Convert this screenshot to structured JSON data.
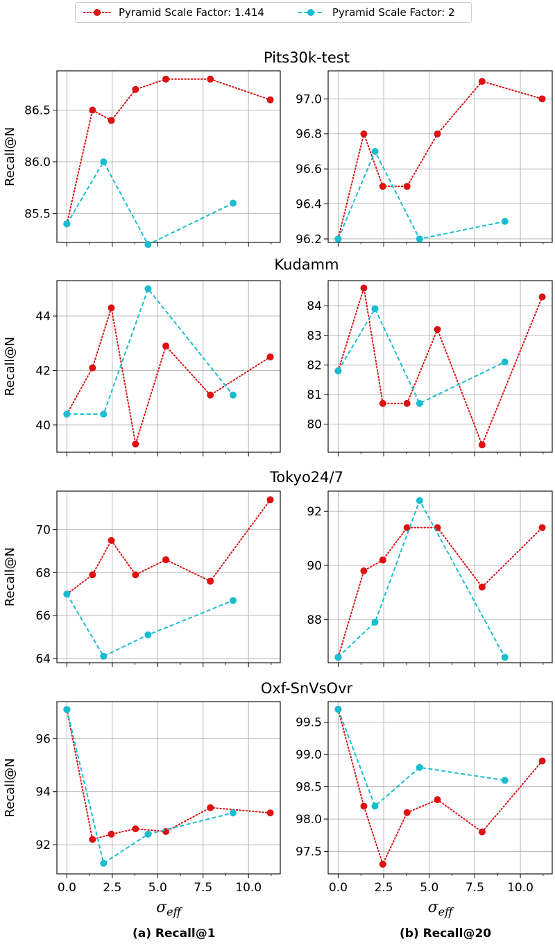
{
  "legend": {
    "series": [
      {
        "name": "Pyramid Scale Factor: 1.414",
        "color": "#dd1111",
        "style": "dotted"
      },
      {
        "name": "Pyramid Scale Factor: 2",
        "color": "#17becf",
        "style": "dashed"
      }
    ]
  },
  "captions": {
    "left": "(a) Recall@1",
    "right": "(b) Recall@20"
  },
  "x_axis_label": "σ_eff",
  "chart_data": [
    {
      "dataset": "Pits30k-test",
      "title": "Pits30k-test",
      "type": "line",
      "panels": [
        {
          "name": "Recall@1",
          "ylabel": "Recall@N",
          "ylim": [
            85.22,
            86.88
          ],
          "yticks": [
            85.5,
            86.0,
            86.5
          ],
          "ytick_labels": [
            "85.5",
            "86.0",
            "86.5"
          ],
          "series": [
            {
              "name": "Pyramid Scale Factor: 1.414",
              "x": [
                0,
                1.41,
                2.45,
                3.78,
                5.45,
                7.9,
                11.2
              ],
              "values": [
                85.4,
                86.5,
                86.4,
                86.7,
                86.8,
                86.8,
                86.6
              ]
            },
            {
              "name": "Pyramid Scale Factor: 2",
              "x": [
                0,
                2.02,
                4.47,
                9.15
              ],
              "values": [
                85.4,
                86.0,
                85.2,
                85.6
              ]
            }
          ]
        },
        {
          "name": "Recall@20",
          "ylabel": "",
          "ylim": [
            96.18,
            97.16
          ],
          "yticks": [
            96.2,
            96.4,
            96.6,
            96.8,
            97.0
          ],
          "ytick_labels": [
            "96.2",
            "96.4",
            "96.6",
            "96.8",
            "97.0"
          ],
          "series": [
            {
              "name": "Pyramid Scale Factor: 1.414",
              "x": [
                0,
                1.41,
                2.45,
                3.78,
                5.45,
                7.9,
                11.2
              ],
              "values": [
                96.2,
                96.8,
                96.5,
                96.5,
                96.8,
                97.1,
                97.0
              ]
            },
            {
              "name": "Pyramid Scale Factor: 2",
              "x": [
                0,
                2.02,
                4.47,
                9.15
              ],
              "values": [
                96.2,
                96.7,
                96.2,
                96.3
              ]
            }
          ]
        }
      ]
    },
    {
      "dataset": "Kudamm",
      "title": "Kudamm",
      "type": "line",
      "panels": [
        {
          "name": "Recall@1",
          "ylabel": "Recall@N",
          "ylim": [
            39.0,
            45.3
          ],
          "yticks": [
            40,
            42,
            44
          ],
          "ytick_labels": [
            "40",
            "42",
            "44"
          ],
          "series": [
            {
              "name": "Pyramid Scale Factor: 1.414",
              "x": [
                0,
                1.41,
                2.45,
                3.78,
                5.45,
                7.9,
                11.2
              ],
              "values": [
                40.4,
                42.1,
                44.3,
                39.3,
                42.9,
                41.1,
                42.5
              ]
            },
            {
              "name": "Pyramid Scale Factor: 2",
              "x": [
                0,
                2.02,
                4.47,
                9.15
              ],
              "values": [
                40.4,
                40.4,
                45.0,
                41.1
              ]
            }
          ]
        },
        {
          "name": "Recall@20",
          "ylabel": "",
          "ylim": [
            79.05,
            84.85
          ],
          "yticks": [
            80,
            81,
            82,
            83,
            84
          ],
          "ytick_labels": [
            "80",
            "81",
            "82",
            "83",
            "84"
          ],
          "series": [
            {
              "name": "Pyramid Scale Factor: 1.414",
              "x": [
                0,
                1.41,
                2.45,
                3.78,
                5.45,
                7.9,
                11.2
              ],
              "values": [
                81.8,
                84.6,
                80.7,
                80.7,
                83.2,
                79.3,
                84.3
              ]
            },
            {
              "name": "Pyramid Scale Factor: 2",
              "x": [
                0,
                2.02,
                4.47,
                9.15
              ],
              "values": [
                81.8,
                83.9,
                80.7,
                82.1
              ]
            }
          ]
        }
      ]
    },
    {
      "dataset": "Tokyo24/7",
      "title": "Tokyo24/7",
      "type": "line",
      "panels": [
        {
          "name": "Recall@1",
          "ylabel": "Recall@N",
          "ylim": [
            63.8,
            71.8
          ],
          "yticks": [
            64,
            66,
            68,
            70
          ],
          "ytick_labels": [
            "64",
            "66",
            "68",
            "70"
          ],
          "series": [
            {
              "name": "Pyramid Scale Factor: 1.414",
              "x": [
                0,
                1.41,
                2.45,
                3.78,
                5.45,
                7.9,
                11.2
              ],
              "values": [
                67.0,
                67.9,
                69.5,
                67.9,
                68.6,
                67.6,
                71.4
              ]
            },
            {
              "name": "Pyramid Scale Factor: 2",
              "x": [
                0,
                2.02,
                4.47,
                9.15
              ],
              "values": [
                67.0,
                64.1,
                65.1,
                66.7
              ]
            }
          ]
        },
        {
          "name": "Recall@20",
          "ylabel": "",
          "ylim": [
            86.4,
            92.75
          ],
          "yticks": [
            88,
            90,
            92
          ],
          "ytick_labels": [
            "88",
            "90",
            "92"
          ],
          "series": [
            {
              "name": "Pyramid Scale Factor: 1.414",
              "x": [
                0,
                1.41,
                2.45,
                3.78,
                5.45,
                7.9,
                11.2
              ],
              "values": [
                86.6,
                89.8,
                90.2,
                91.4,
                91.4,
                89.2,
                91.4
              ]
            },
            {
              "name": "Pyramid Scale Factor: 2",
              "x": [
                0,
                2.02,
                4.47,
                9.15
              ],
              "values": [
                86.6,
                87.9,
                92.4,
                86.6
              ]
            }
          ]
        }
      ]
    },
    {
      "dataset": "Oxf-SnVsOvr",
      "title": "Oxf-SnVsOvr",
      "type": "line",
      "panels": [
        {
          "name": "Recall@1",
          "ylabel": "Recall@N",
          "xlabel": "σ_eff",
          "ylim": [
            90.9,
            97.4
          ],
          "yticks": [
            92,
            94,
            96
          ],
          "ytick_labels": [
            "92",
            "94",
            "96"
          ],
          "xticks": [
            0,
            2.5,
            5,
            7.5,
            10
          ],
          "xtick_labels": [
            "0.0",
            "2.5",
            "5.0",
            "7.5",
            "10.0"
          ],
          "series": [
            {
              "name": "Pyramid Scale Factor: 1.414",
              "x": [
                0,
                1.41,
                2.45,
                3.78,
                5.45,
                7.9,
                11.2
              ],
              "values": [
                97.1,
                92.2,
                92.4,
                92.6,
                92.5,
                93.4,
                93.2
              ]
            },
            {
              "name": "Pyramid Scale Factor: 2",
              "x": [
                0,
                2.02,
                4.47,
                9.15
              ],
              "values": [
                97.1,
                91.3,
                92.4,
                93.2
              ]
            }
          ]
        },
        {
          "name": "Recall@20",
          "ylabel": "",
          "xlabel": "σ_eff",
          "ylim": [
            97.15,
            99.82
          ],
          "yticks": [
            97.5,
            98.0,
            98.5,
            99.0,
            99.5
          ],
          "ytick_labels": [
            "97.5",
            "98.0",
            "98.5",
            "99.0",
            "99.5"
          ],
          "xticks": [
            0,
            2.5,
            5,
            7.5,
            10
          ],
          "xtick_labels": [
            "0.0",
            "2.5",
            "5.0",
            "7.5",
            "10.0"
          ],
          "series": [
            {
              "name": "Pyramid Scale Factor: 1.414",
              "x": [
                0,
                1.41,
                2.45,
                3.78,
                5.45,
                7.9,
                11.2
              ],
              "values": [
                99.7,
                98.2,
                97.3,
                98.1,
                98.3,
                97.8,
                98.9
              ]
            },
            {
              "name": "Pyramid Scale Factor: 2",
              "x": [
                0,
                2.02,
                4.47,
                9.15
              ],
              "values": [
                99.7,
                98.2,
                98.8,
                98.6
              ]
            }
          ]
        }
      ]
    }
  ],
  "x_range": [
    -0.55,
    11.75
  ]
}
